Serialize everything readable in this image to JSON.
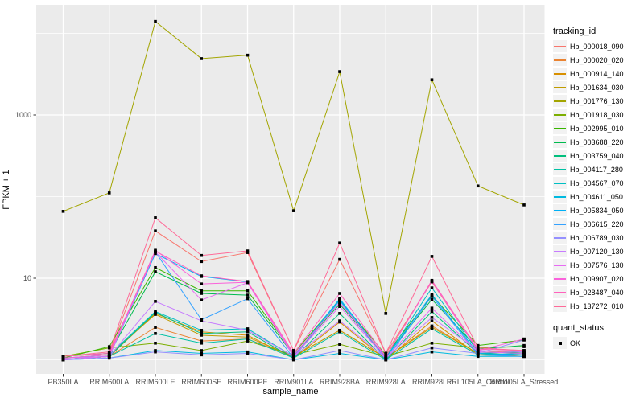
{
  "chart_data": {
    "type": "line",
    "xlabel": "sample_name",
    "ylabel": "FPKM + 1",
    "y_scale": "log10",
    "y_ticks": [
      {
        "label": "1000",
        "value": 1000
      },
      {
        "label": "10",
        "value": 10
      }
    ],
    "y_minor_values": [
      1,
      100,
      10000
    ],
    "grid": "on",
    "panel_bg": "#EBEBEB",
    "grid_color": "#FFFFFF",
    "tick_label_color": "#4D4D4D",
    "point_color": "#000000",
    "legend_position": "right",
    "categories": [
      "PB350LA",
      "RRIM600LA",
      "RRIM600LE",
      "RRIM600SE",
      "RRIM600PE",
      "RRIM901LA",
      "RRIM928BA",
      "RRIM928LA",
      "RRIM928LE",
      "RRII105LA_Control",
      "RRII105LA_Stressed"
    ],
    "series": [
      {
        "name": "Hb_000018_090",
        "color": "#F8766D",
        "values": [
          1.1,
          1.2,
          38,
          16,
          20.6,
          1.3,
          17,
          1.2,
          9.0,
          1.3,
          1.2
        ]
      },
      {
        "name": "Hb_000020_020",
        "color": "#EA8331",
        "values": [
          1.05,
          1.1,
          2.5,
          1.7,
          1.8,
          1.1,
          2.3,
          1.05,
          2.6,
          1.2,
          1.15
        ]
      },
      {
        "name": "Hb_000914_140",
        "color": "#D89000",
        "values": [
          1.0,
          1.1,
          3.7,
          2.2,
          2.0,
          1.05,
          2.9,
          1.0,
          3.0,
          1.15,
          1.1
        ]
      },
      {
        "name": "Hb_001634_030",
        "color": "#C09B00",
        "values": [
          1.05,
          1.15,
          3.6,
          2.0,
          1.9,
          1.1,
          2.3,
          1.05,
          2.5,
          1.2,
          1.1
        ]
      },
      {
        "name": "Hb_001776_130",
        "color": "#A3A500",
        "values": [
          66,
          111,
          14000,
          4900,
          5400,
          67,
          3400,
          3.7,
          2700,
          135,
          79
        ]
      },
      {
        "name": "Hb_001918_030",
        "color": "#7CAE00",
        "values": [
          1.1,
          1.4,
          1.6,
          1.3,
          1.7,
          1.15,
          1.55,
          1.1,
          1.6,
          1.4,
          1.45
        ]
      },
      {
        "name": "Hb_002995_010",
        "color": "#39B600",
        "values": [
          1.05,
          1.45,
          13.5,
          7.0,
          7.0,
          1.2,
          5.4,
          1.15,
          6.1,
          1.5,
          1.75
        ]
      },
      {
        "name": "Hb_003688_220",
        "color": "#00BB4E",
        "values": [
          1.1,
          1.2,
          12,
          6.5,
          6.2,
          1.15,
          4.8,
          1.1,
          5.5,
          1.35,
          1.5
        ]
      },
      {
        "name": "Hb_003759_040",
        "color": "#00BF7D",
        "values": [
          1.0,
          1.1,
          3.8,
          2.1,
          2.2,
          1.05,
          3.7,
          1.0,
          3.9,
          1.2,
          1.25
        ]
      },
      {
        "name": "Hb_004117_280",
        "color": "#00C1A3",
        "values": [
          1.0,
          1.1,
          2.1,
          1.6,
          1.8,
          1.05,
          2.2,
          1.0,
          2.4,
          1.15,
          1.2
        ]
      },
      {
        "name": "Hb_004567_070",
        "color": "#00BFC4",
        "values": [
          1.05,
          1.15,
          3.9,
          2.3,
          2.4,
          1.1,
          5.5,
          1.05,
          7.6,
          1.25,
          1.2
        ]
      },
      {
        "name": "Hb_004611_050",
        "color": "#00BAE0",
        "values": [
          1.0,
          1.05,
          1.3,
          1.2,
          1.25,
          1.0,
          1.2,
          1.0,
          1.25,
          1.1,
          1.1
        ]
      },
      {
        "name": "Hb_005834_050",
        "color": "#00B0F6",
        "values": [
          1.0,
          1.1,
          20,
          10.5,
          9.0,
          1.1,
          5.6,
          1.05,
          6.3,
          1.2,
          1.15
        ]
      },
      {
        "name": "Hb_006615_220",
        "color": "#35A2FF",
        "values": [
          1.05,
          1.1,
          21,
          3.1,
          5.6,
          1.05,
          5.3,
          1.0,
          6.0,
          1.15,
          1.1
        ]
      },
      {
        "name": "Hb_006789_030",
        "color": "#9590FF",
        "values": [
          1.0,
          1.05,
          1.25,
          1.15,
          1.2,
          1.0,
          1.3,
          1.0,
          1.4,
          1.2,
          1.75
        ]
      },
      {
        "name": "Hb_007120_130",
        "color": "#C77CFF",
        "values": [
          1.05,
          1.1,
          5.2,
          3.0,
          2.3,
          1.1,
          3.0,
          1.05,
          3.3,
          1.3,
          1.25
        ]
      },
      {
        "name": "Hb_007576_130",
        "color": "#E76BF3",
        "values": [
          1.0,
          1.1,
          21,
          5.4,
          8.8,
          1.1,
          4.5,
          1.05,
          4.3,
          1.25,
          1.2
        ]
      },
      {
        "name": "Hb_009907_020",
        "color": "#FA62DB",
        "values": [
          1.05,
          1.15,
          22,
          8.5,
          8.9,
          1.15,
          5.0,
          1.1,
          9.2,
          1.3,
          1.8
        ]
      },
      {
        "name": "Hb_028487_040",
        "color": "#FF62BC",
        "values": [
          1.1,
          1.2,
          21.5,
          10.7,
          9.1,
          1.2,
          6.5,
          1.1,
          9.4,
          1.35,
          1.3
        ]
      },
      {
        "name": "Hb_137272_010",
        "color": "#FF6A98",
        "values": [
          1.1,
          1.25,
          55,
          19,
          21.6,
          1.3,
          27,
          1.2,
          18.5,
          1.4,
          1.3
        ]
      }
    ],
    "legend": {
      "tracking_title": "tracking_id",
      "quant_title": "quant_status",
      "quant_value": "OK"
    }
  }
}
